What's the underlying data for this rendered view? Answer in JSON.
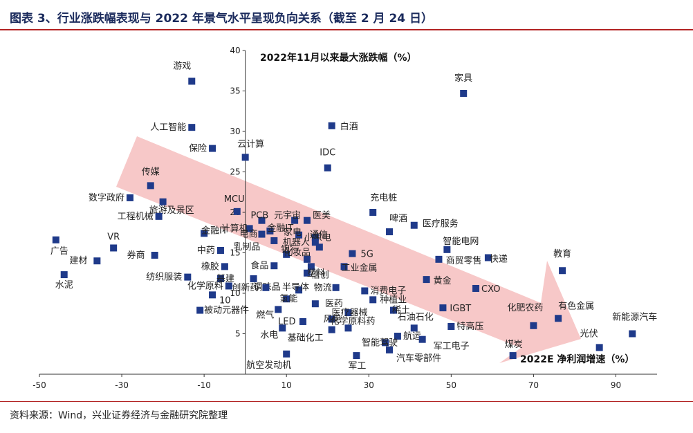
{
  "header": {
    "title": "图表 3、行业涨跌幅表现与 2022 年景气水平呈现负向关系（截至 2 月 24 日）"
  },
  "footer": {
    "source": "资料来源：Wind，兴业证券经济与金融研究院整理"
  },
  "colors": {
    "marker": "#1f3a8a",
    "title": "#1a2a5c",
    "rule": "#b22222",
    "arrow": "#f4b6b6"
  },
  "chart_data": {
    "type": "scatter",
    "xlabel": "2022E 净利润增速（%）",
    "ylabel": "2022年11月以来最大涨跌幅（%）",
    "xlim": [
      -50,
      100
    ],
    "ylim": [
      0,
      40
    ],
    "xticks": [
      -50,
      -30,
      -10,
      10,
      30,
      50,
      70,
      90
    ],
    "yticks": [
      5,
      10,
      15,
      20,
      25,
      30,
      35,
      40
    ],
    "trend_arrow": "downward-right",
    "points": [
      {
        "label": "游戏",
        "x": -13,
        "y": 36.2
      },
      {
        "label": "家具",
        "x": 53,
        "y": 34.7
      },
      {
        "label": "人工智能",
        "x": -13,
        "y": 30.5
      },
      {
        "label": "白酒",
        "x": 21,
        "y": 30.7
      },
      {
        "label": "保险",
        "x": -8,
        "y": 27.9
      },
      {
        "label": "云计算",
        "x": 0,
        "y": 26.8
      },
      {
        "label": "IDC",
        "x": 20,
        "y": 25.5
      },
      {
        "label": "传媒",
        "x": -23,
        "y": 23.3
      },
      {
        "label": "数字政府",
        "x": -28,
        "y": 21.8
      },
      {
        "label": "旅游及景区",
        "x": -20,
        "y": 21.3
      },
      {
        "label": "充电桩",
        "x": 31,
        "y": 20.0
      },
      {
        "label": "MCU",
        "x": -2,
        "y": 20.1
      },
      {
        "label": "PCB",
        "x": 4,
        "y": 19.0
      },
      {
        "label": "元宇宙",
        "x": 12,
        "y": 19.0
      },
      {
        "label": "医美",
        "x": 15,
        "y": 19.0
      },
      {
        "label": "工程机械",
        "x": -21,
        "y": 19.5
      },
      {
        "label": "啤酒",
        "x": 35,
        "y": 17.6
      },
      {
        "label": "医疗服务",
        "x": 41,
        "y": 18.4
      },
      {
        "label": "计算机",
        "x": 1,
        "y": 18.0
      },
      {
        "label": "金融IT",
        "x": 6,
        "y": 17.7
      },
      {
        "label": "电商",
        "x": 4,
        "y": 17.3
      },
      {
        "label": "金融IT",
        "x": -10,
        "y": 17.4
      },
      {
        "label": "家电",
        "x": 13,
        "y": 17.2
      },
      {
        "label": "通信",
        "x": 17,
        "y": 16.9
      },
      {
        "label": "小家电",
        "x": 18,
        "y": 15.7
      },
      {
        "label": "机器人",
        "x": 17,
        "y": 16.3
      },
      {
        "label": "乳制品",
        "x": 7,
        "y": 16.5
      },
      {
        "label": "VR",
        "x": -32,
        "y": 15.6
      },
      {
        "label": "广告",
        "x": -46,
        "y": 16.6
      },
      {
        "label": "5G",
        "x": 26,
        "y": 14.9
      },
      {
        "label": "智能电网",
        "x": 49,
        "y": 15.4
      },
      {
        "label": "快递",
        "x": 59,
        "y": 14.4
      },
      {
        "label": "中药",
        "x": -6,
        "y": 15.3
      },
      {
        "label": "券商",
        "x": -22,
        "y": 14.7
      },
      {
        "label": "银行",
        "x": 10,
        "y": 14.8
      },
      {
        "label": "化妆品",
        "x": 15,
        "y": 14.2
      },
      {
        "label": "信创",
        "x": 16,
        "y": 13.3
      },
      {
        "label": "食品",
        "x": 7,
        "y": 13.4
      },
      {
        "label": "商贸零售",
        "x": 47,
        "y": 14.2
      },
      {
        "label": "教育",
        "x": 77,
        "y": 12.8
      },
      {
        "label": "建材",
        "x": -36,
        "y": 14.0
      },
      {
        "label": "橡胶",
        "x": -5,
        "y": 13.3
      },
      {
        "label": "工业金属",
        "x": 24,
        "y": 13.3
      },
      {
        "label": "塑料",
        "x": 15,
        "y": 12.5
      },
      {
        "label": "水泥",
        "x": -44,
        "y": 12.3
      },
      {
        "label": "纺织服装",
        "x": -14,
        "y": 12.0
      },
      {
        "label": "基建",
        "x": -6,
        "y": 11.8
      },
      {
        "label": "调味品",
        "x": 2,
        "y": 11.8
      },
      {
        "label": "黄金",
        "x": 44,
        "y": 11.7
      },
      {
        "label": "CXO",
        "x": 56,
        "y": 10.6
      },
      {
        "label": "化学原料",
        "x": -4,
        "y": 10.9
      },
      {
        "label": "创新药",
        "x": 5,
        "y": 10.7
      },
      {
        "label": "半导体",
        "x": 13,
        "y": 10.4
      },
      {
        "label": "物流",
        "x": 22,
        "y": 10.7
      },
      {
        "label": "消费电子",
        "x": 29,
        "y": 10.3
      },
      {
        "label": "10",
        "x": -8,
        "y": 9.8
      },
      {
        "label": "氢能",
        "x": 10,
        "y": 9.3
      },
      {
        "label": "医药",
        "x": 17,
        "y": 8.7
      },
      {
        "label": "种植业",
        "x": 31,
        "y": 9.2
      },
      {
        "label": "被动元器件",
        "x": -11,
        "y": 7.9
      },
      {
        "label": "燃气",
        "x": 8,
        "y": 8.0
      },
      {
        "label": "医疗器械",
        "x": 25,
        "y": 7.6
      },
      {
        "label": "稀土",
        "x": 36,
        "y": 7.9
      },
      {
        "label": "IGBT",
        "x": 48,
        "y": 8.2
      },
      {
        "label": "化肥农药",
        "x": 70,
        "y": 6.0
      },
      {
        "label": "有色金属",
        "x": 76,
        "y": 6.9
      },
      {
        "label": "新能源汽车",
        "x": 94,
        "y": 5.0
      },
      {
        "label": "风电",
        "x": 21,
        "y": 6.8
      },
      {
        "label": "LED",
        "x": 14,
        "y": 6.5
      },
      {
        "label": "化学原料药",
        "x": 25,
        "y": 5.7
      },
      {
        "label": "水电",
        "x": 9,
        "y": 5.7
      },
      {
        "label": "石油石化",
        "x": 41,
        "y": 5.7
      },
      {
        "label": "特高压",
        "x": 50,
        "y": 5.9
      },
      {
        "label": "航运",
        "x": 37,
        "y": 4.7
      },
      {
        "label": "基础化工",
        "x": 21,
        "y": 5.5
      },
      {
        "label": "光伏",
        "x": 86,
        "y": 3.3
      },
      {
        "label": "智能驾驶",
        "x": 34,
        "y": 3.9
      },
      {
        "label": "军工电子",
        "x": 43,
        "y": 4.3
      },
      {
        "label": "煤炭",
        "x": 65,
        "y": 2.3
      },
      {
        "label": "汽车零部件",
        "x": 35,
        "y": 3.0
      },
      {
        "label": "航空发动机",
        "x": 10,
        "y": 2.5
      },
      {
        "label": "军工",
        "x": 27,
        "y": 2.3
      }
    ]
  }
}
